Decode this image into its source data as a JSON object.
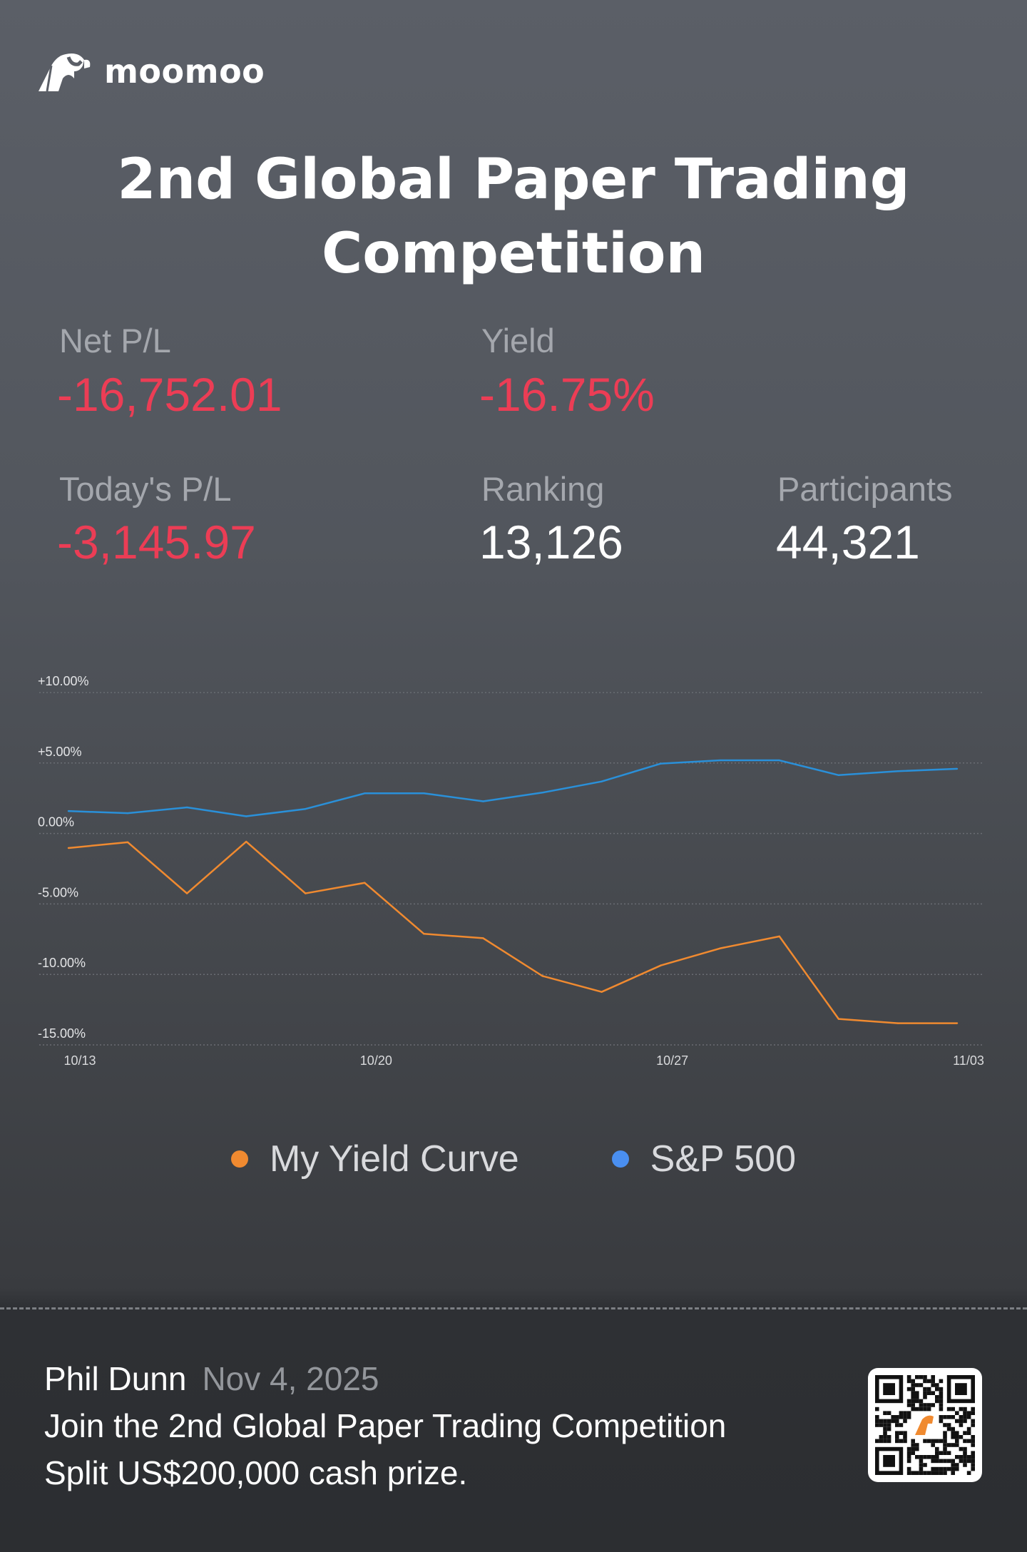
{
  "brand": {
    "name": "moomoo",
    "logo_icon": "bull-icon"
  },
  "title": {
    "line1": "2nd Global Paper Trading",
    "line2": "Competition"
  },
  "stats": {
    "net_pl": {
      "label": "Net P/L",
      "value": "-16,752.01"
    },
    "yield": {
      "label": "Yield",
      "value": "-16.75%"
    },
    "todays_pl": {
      "label": "Today's P/L",
      "value": "-3,145.97"
    },
    "ranking": {
      "label": "Ranking",
      "value": "13,126"
    },
    "participants": {
      "label": "Participants",
      "value": "44,321"
    }
  },
  "colors": {
    "negative": "#ec3d55",
    "my_yield": "#f08a30",
    "sp500": "#2a90d9",
    "sp500_dot": "#4a8ff0"
  },
  "chart_data": {
    "type": "line",
    "x": [
      "10/13",
      "10/14",
      "10/15",
      "10/16",
      "10/17",
      "10/20",
      "10/21",
      "10/22",
      "10/23",
      "10/24",
      "10/27",
      "10/28",
      "10/29",
      "10/30",
      "10/31",
      "11/03"
    ],
    "x_tick_labels": [
      "10/13",
      "10/20",
      "10/27",
      "11/03"
    ],
    "y_tick_labels": [
      "+10.00%",
      "+5.00%",
      "0.00%",
      "-5.00%",
      "-10.00%",
      "-15.00%"
    ],
    "ylim": [
      -15,
      10
    ],
    "grid": true,
    "legend_position": "bottom",
    "series": [
      {
        "name": "My Yield Curve",
        "color": "#f08a30",
        "values": [
          -1.03,
          -0.62,
          -4.25,
          -0.58,
          -4.25,
          -3.5,
          -7.12,
          -7.43,
          -10.11,
          -11.24,
          -9.36,
          -8.15,
          -7.3,
          -13.16,
          -13.46,
          -13.46
        ]
      },
      {
        "name": "S&P 500",
        "color": "#2a90d9",
        "values": [
          1.59,
          1.44,
          1.85,
          1.22,
          1.74,
          2.85,
          2.85,
          2.28,
          2.9,
          3.69,
          4.96,
          5.19,
          5.19,
          4.14,
          4.42,
          4.59
        ]
      }
    ]
  },
  "footer": {
    "user": "Phil Dunn",
    "date": "Nov 4, 2025",
    "line1": "Join the 2nd Global Paper Trading Competition",
    "line2": "Split US$200,000 cash prize.",
    "qr_icon": "qr-code-icon"
  }
}
